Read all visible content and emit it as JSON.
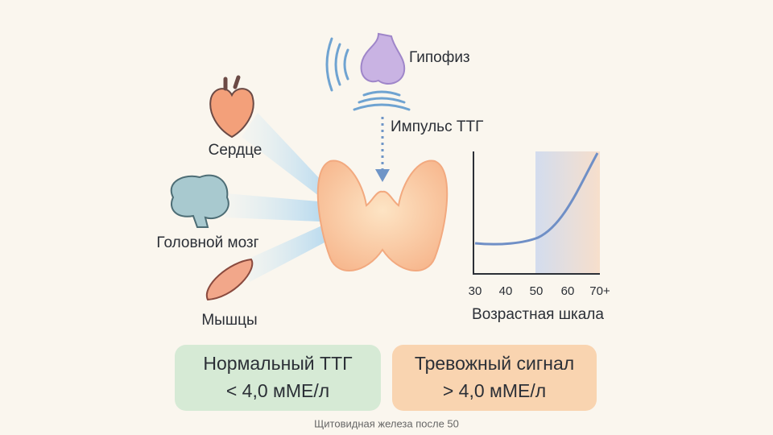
{
  "pituitary": {
    "label": "Гипофиз"
  },
  "signal": {
    "label": "Импульс ТТГ"
  },
  "organs": [
    {
      "label": "Сердце"
    },
    {
      "label": "Головной мозг"
    },
    {
      "label": "Мышцы"
    }
  ],
  "age_scale": {
    "ticks": [
      "30",
      "40",
      "50",
      "60",
      "70+"
    ],
    "label": "Возрастная шкала"
  },
  "boxes": [
    {
      "title": "Нормальный ТТГ",
      "value": "< 4,0 мМЕ/л"
    },
    {
      "title": "Тревожный сигнал",
      "value": "> 4,0 мМЕ/л"
    }
  ],
  "footer": "Щитовидная железа после 50"
}
